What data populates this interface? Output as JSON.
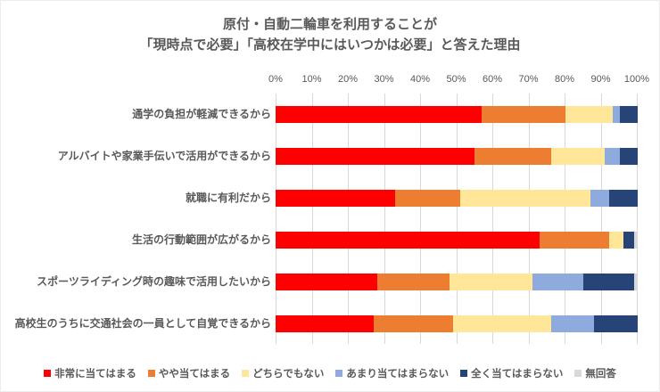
{
  "chart_data": {
    "type": "bar",
    "stacked": true,
    "orientation": "horizontal",
    "title_line1": "原付・自動二輪車を利用することが",
    "title_line2": "「現時点で必要」「高校在学中にはいつかは必要」と答えた理由",
    "categories": [
      "通学の負担が軽減できるから",
      "アルバイトや家業手伝いで活用ができるから",
      "就職に有利だから",
      "生活の行動範囲が広がるから",
      "スポーツライディング時の趣味で活用したいから",
      "高校生のうちに交通社会の一員として自覚できるから"
    ],
    "series": [
      {
        "name": "非常に当てはまる",
        "color": "#ff0000",
        "values": [
          57,
          55,
          33,
          73,
          28,
          27
        ]
      },
      {
        "name": "やや当てはまる",
        "color": "#ed7d31",
        "values": [
          23,
          21,
          18,
          19,
          20,
          22
        ]
      },
      {
        "name": "どちらでもない",
        "color": "#ffe699",
        "values": [
          13,
          15,
          36,
          4,
          23,
          27
        ]
      },
      {
        "name": "あまり当てはまらない",
        "color": "#8faadc",
        "values": [
          2,
          4,
          5,
          0,
          14,
          12
        ]
      },
      {
        "name": "全く当てはまらない",
        "color": "#264478",
        "values": [
          5,
          5,
          8,
          3,
          14,
          12
        ]
      },
      {
        "name": "無回答",
        "color": "#d9d9d9",
        "values": [
          0,
          0,
          0,
          1,
          1,
          0
        ]
      }
    ],
    "x_ticks": [
      "0%",
      "10%",
      "20%",
      "30%",
      "40%",
      "50%",
      "60%",
      "70%",
      "80%",
      "90%",
      "100%"
    ],
    "xlim": [
      0,
      100
    ],
    "grid": true,
    "legend_position": "bottom",
    "text_color": "#595959",
    "gridline_color": "#d9d9d9"
  }
}
